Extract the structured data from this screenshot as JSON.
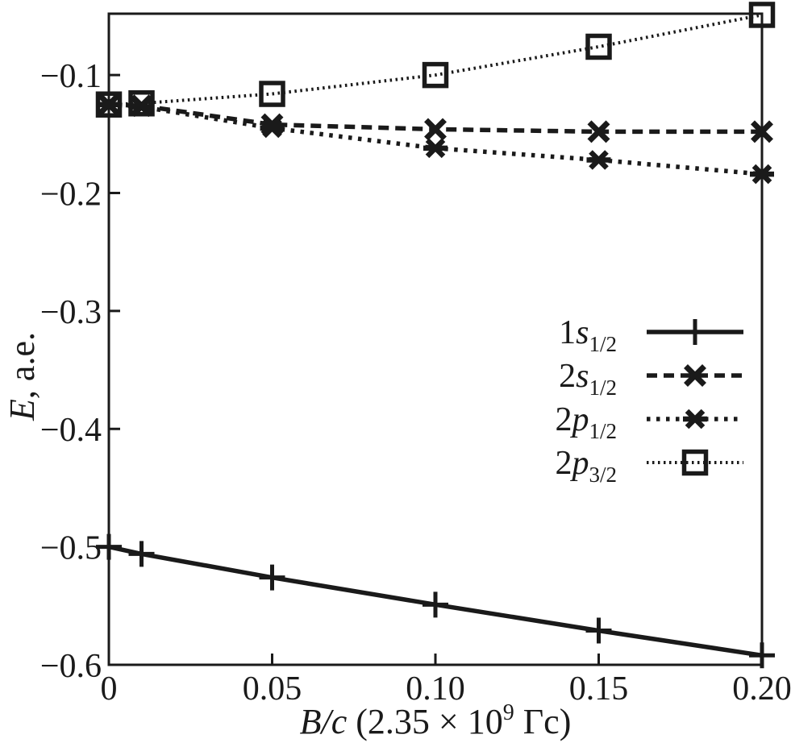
{
  "figure": {
    "background": "#ffffff",
    "ink": "#1a1a1a"
  },
  "chart_data": {
    "type": "line",
    "title": "",
    "xlabel": {
      "var": "B/c",
      "mid": " (2.35 × 10",
      "sup": "9",
      "end": " Гс)"
    },
    "ylabel": {
      "var": "E",
      "rest": ", a.e."
    },
    "xlim": [
      0,
      0.2
    ],
    "ylim": [
      -0.6,
      -0.048
    ],
    "grid": false,
    "legend_position": "inside-right-middle",
    "x_ticks": [
      {
        "v": 0,
        "label": "0"
      },
      {
        "v": 0.05,
        "label": "0.05"
      },
      {
        "v": 0.1,
        "label": "0.10"
      },
      {
        "v": 0.15,
        "label": "0.15"
      },
      {
        "v": 0.2,
        "label": "0.20"
      }
    ],
    "y_ticks": [
      {
        "v": -0.1,
        "label": "−0.1"
      },
      {
        "v": -0.2,
        "label": "−0.2"
      },
      {
        "v": -0.3,
        "label": "−0.3"
      },
      {
        "v": -0.4,
        "label": "−0.4"
      },
      {
        "v": -0.5,
        "label": "−0.5"
      },
      {
        "v": -0.6,
        "label": "−0.6"
      }
    ],
    "x": [
      0,
      0.01,
      0.05,
      0.1,
      0.15,
      0.2
    ],
    "series": [
      {
        "id": "1s12",
        "label": {
          "num": "1",
          "letter": "s",
          "sub": "1/2"
        },
        "line": "solid",
        "marker": "plus",
        "values": [
          -0.5,
          -0.506,
          -0.526,
          -0.549,
          -0.571,
          -0.592
        ]
      },
      {
        "id": "2s12",
        "label": {
          "num": "2",
          "letter": "s",
          "sub": "1/2"
        },
        "line": "dashed",
        "marker": "x",
        "values": [
          -0.125,
          -0.126,
          -0.142,
          -0.146,
          -0.148,
          -0.148
        ]
      },
      {
        "id": "2p12",
        "label": {
          "num": "2",
          "letter": "p",
          "sub": "1/2"
        },
        "line": "dotted",
        "marker": "asterisk",
        "values": [
          -0.125,
          -0.127,
          -0.145,
          -0.162,
          -0.172,
          -0.184
        ]
      },
      {
        "id": "2p32",
        "label": {
          "num": "2",
          "letter": "p",
          "sub": "3/2"
        },
        "line": "fine-dotted",
        "marker": "square",
        "values": [
          -0.125,
          -0.124,
          -0.116,
          -0.1,
          -0.076,
          -0.049
        ]
      }
    ]
  }
}
